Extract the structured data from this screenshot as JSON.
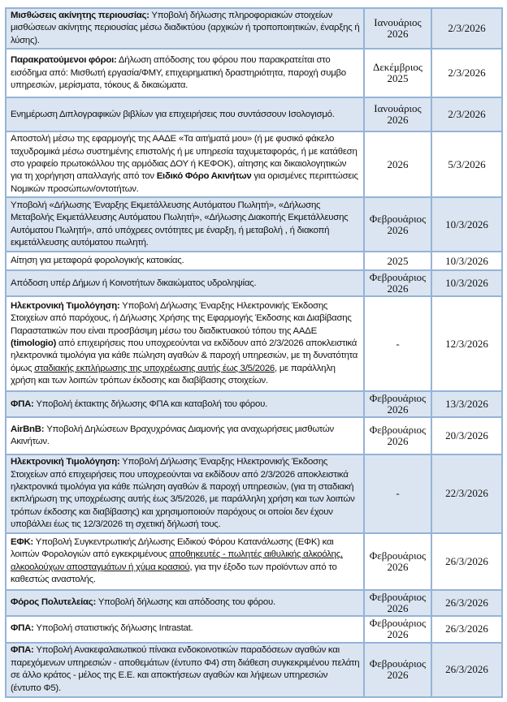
{
  "colors": {
    "row_alt": "#dbe5f1",
    "border": "#95b3d7"
  },
  "rows": [
    {
      "segments": [
        {
          "t": "Μισθώσεις ακίνητης περιουσίας:",
          "b": true
        },
        {
          "t": "  Υποβολή δήλωσης πληροφοριακών στοιχείων μισθώσεων  ακίνητης περιουσίας μέσω διαδικτύου (αρχικών ή τροποποιητικών, έναρξης ή λύσης)."
        }
      ],
      "period": "Ιανουάριος 2026",
      "date": "2/3/2026"
    },
    {
      "segments": [
        {
          "t": "Παρακρατούμενοι φόροι:",
          "b": true
        },
        {
          "t": "  Δήλωση απόδοσης του φόρου που παρακρατείται στο εισόδημα από: Μισθωτή εργασία/ΦΜΥ, επιχειρηματική δραστηριότητα, παροχή συμβο υπηρεσιών, μερίσματα, τόκους & δικαιώματα."
        }
      ],
      "period": "Δεκέμβριος 2025",
      "date": "2/3/2026"
    },
    {
      "segments": [
        {
          "t": "Ενημέρωση Διπλογραφικών βιβλίων για επιχειρήσεις που συντάσσουν Ισολογισμό."
        }
      ],
      "period": "Ιανουάριος 2026",
      "date": "2/3/2026"
    },
    {
      "segments": [
        {
          "t": "Αποστολή μέσω της εφαρμογής της ΑΑΔΕ «Τα αιτήματά μου» (ή με φυσικό φάκελο ταχυδρομικά μέσω συστημένης επιστολής ή με υπηρεσία ταχυμεταφοράς, ή με κατάθεση στο γραφείο πρωτοκόλλου της αρμόδιας ΔΟΥ ή ΚΕΦΟΚ), αίτησης και δικαιολογητικών για τη χορήγηση απαλλαγής από τον "
        },
        {
          "t": "Ειδικό Φόρο Ακινήτων",
          "b": true
        },
        {
          "t": " για ορισμένες περιπτώσεις Νομικών προσώπων/οντοτήτων."
        }
      ],
      "period": "2026",
      "date": "5/3/2026"
    },
    {
      "segments": [
        {
          "t": "Υποβολή «Δήλωσης Έναρξης Εκμετάλλευσης Αυτόματου Πωλητή», «Δήλωσης Μεταβολής Εκμετάλλευσης Αυτόματου Πωλητή», «Δήλωσης Διακοπής Εκμετάλλευσης Αυτόματου Πωλητή», από υπόχρεες οντότητες με έναρξη, ή μεταβολή , ή διακοπή εκμετάλλευσης αυτόματου πωλητή."
        }
      ],
      "period": "Φεβρουάριος 2026",
      "date": "10/3/2026"
    },
    {
      "segments": [
        {
          "t": "Αίτηση για μεταφορά φορολογικής κατοικίας."
        }
      ],
      "period": "2025",
      "date": "10/3/2026"
    },
    {
      "segments": [
        {
          "t": "Απόδοση υπέρ Δήμων ή Κοινοτήτων δικαιώματος υδροληψίας."
        }
      ],
      "period": "Φεβρουάριος 2026",
      "date": "10/3/2026"
    },
    {
      "segments": [
        {
          "t": "Ηλεκτρονική Τιμολόγηση:",
          "b": true
        },
        {
          "t": " Υποβολή Δήλωσης Έναρξης Ηλεκτρονικής Έκδοσης Στοιχείων από παρόχους, ή Δήλωσης Χρήσης της Εφαρμογής Έκδοσης και Διαβίβασης Παραστατικών που είναι προσβάσιμη μέσω του διαδικτυακού τόπου της ΑΑΔΕ "
        },
        {
          "t": "(timologio)",
          "b": true
        },
        {
          "t": " από επιχειρήσεις που υποχρεούνται να εκδίδουν από 2/3/2026 αποκλειστικά ηλεκτρονικά τιμολόγια για κάθε πώληση αγαθών & παροχή υπηρεσιών, με τη δυνατότητα όμως "
        },
        {
          "t": "σταδιακής εκπλήρωσης της υποχρέωσης αυτής έως 3/5/2026,",
          "u": true
        },
        {
          "t": " με παράλληλη χρήση και των λοιπών τρόπων έκδοσης και διαβίβασης στοιχείων."
        }
      ],
      "period": "-",
      "date": "12/3/2026"
    },
    {
      "segments": [
        {
          "t": "ΦΠΑ:",
          "b": true
        },
        {
          "t": " Υποβολή έκτακτης δήλωσης ΦΠΑ και καταβολή του φόρου."
        }
      ],
      "period": "Φεβρουάριος 2026",
      "date": "13/3/2026"
    },
    {
      "segments": [
        {
          "t": "AirBnB:",
          "b": true
        },
        {
          "t": " Υποβολή Δηλώσεων Βραχυχρόνιας Διαμονής για αναχωρήσεις μισθωτών Ακινήτων."
        }
      ],
      "period": "Φεβρουάριος 2026",
      "date": "20/3/2026"
    },
    {
      "segments": [
        {
          "t": "Ηλεκτρονική Τιμολόγηση:",
          "b": true
        },
        {
          "t": " Υποβολή Δήλωσης Έναρξης Ηλεκτρονικής Έκδοσης Στοιχείων από επιχειρήσεις που υποχρεούνται να εκδίδουν από 2/3/2026 αποκλειστικά ηλεκτρονικά τιμολόγια για κάθε πώληση αγαθών & παροχή υπηρεσιών, (για τη σταδιακή εκπλήρωση της υποχρέωσης αυτής έως 3/5/2026, με παράλληλη χρήση και των λοιπών τρόπων έκδοσης και διαβίβασης) και χρησιμοποιούν παρόχους οι οποίοι δεν έχουν υποβάλλει έως τις 12/3/2026 τη σχετική δήλωσή τους."
        }
      ],
      "period": "-",
      "date": "22/3/2026"
    },
    {
      "segments": [
        {
          "t": "ΕΦΚ:",
          "b": true
        },
        {
          "t": " Υποβολή Συγκεντρωτικής Δήλωσης Ειδικού Φόρου Κατανάλωσης (ΕΦΚ) και λοιπών Φορολογιών από εγκεκριμένους "
        },
        {
          "t": "αποθηκευτές - πωλητές αιθυλικής αλκοόλης, αλκοολούχων αποσταγμάτων ή χύμα κρασιού",
          "u": true
        },
        {
          "t": ", για την έξοδο των προϊόντων από το καθεστώς αναστολής."
        }
      ],
      "period": "Φεβρουάριος 2026",
      "date": "26/3/2026"
    },
    {
      "segments": [
        {
          "t": "Φόρος Πολυτελείας:",
          "b": true
        },
        {
          "t": " Υποβολή δήλωσης και απόδοσης του φόρου."
        }
      ],
      "period": "Φεβρουάριος 2026",
      "date": "26/3/2026"
    },
    {
      "segments": [
        {
          "t": "ΦΠΑ:",
          "b": true
        },
        {
          "t": " Υποβολή στατιστικής δήλωσης Intrastat."
        }
      ],
      "period": "Φεβρουάριος 2026",
      "date": "26/3/2026"
    },
    {
      "segments": [
        {
          "t": "ΦΠΑ:",
          "b": true
        },
        {
          "t": " Υποβολή Ανακεφαλαιωτικού πίνακα ενδοκοινοτικών παραδόσεων αγαθών και παρεχόμενων υπηρεσιών - αποθεμάτων (έντυπο Φ4) στη διάθεση συγκεκριμένου πελάτη σε άλλο κράτος - μέλος της Ε.Ε. και αποκτήσεων αγαθών και λήψεων υπηρεσιών (έντυπο Φ5)."
        }
      ],
      "period": "Φεβρουάριος 2026",
      "date": "26/3/2026"
    }
  ]
}
